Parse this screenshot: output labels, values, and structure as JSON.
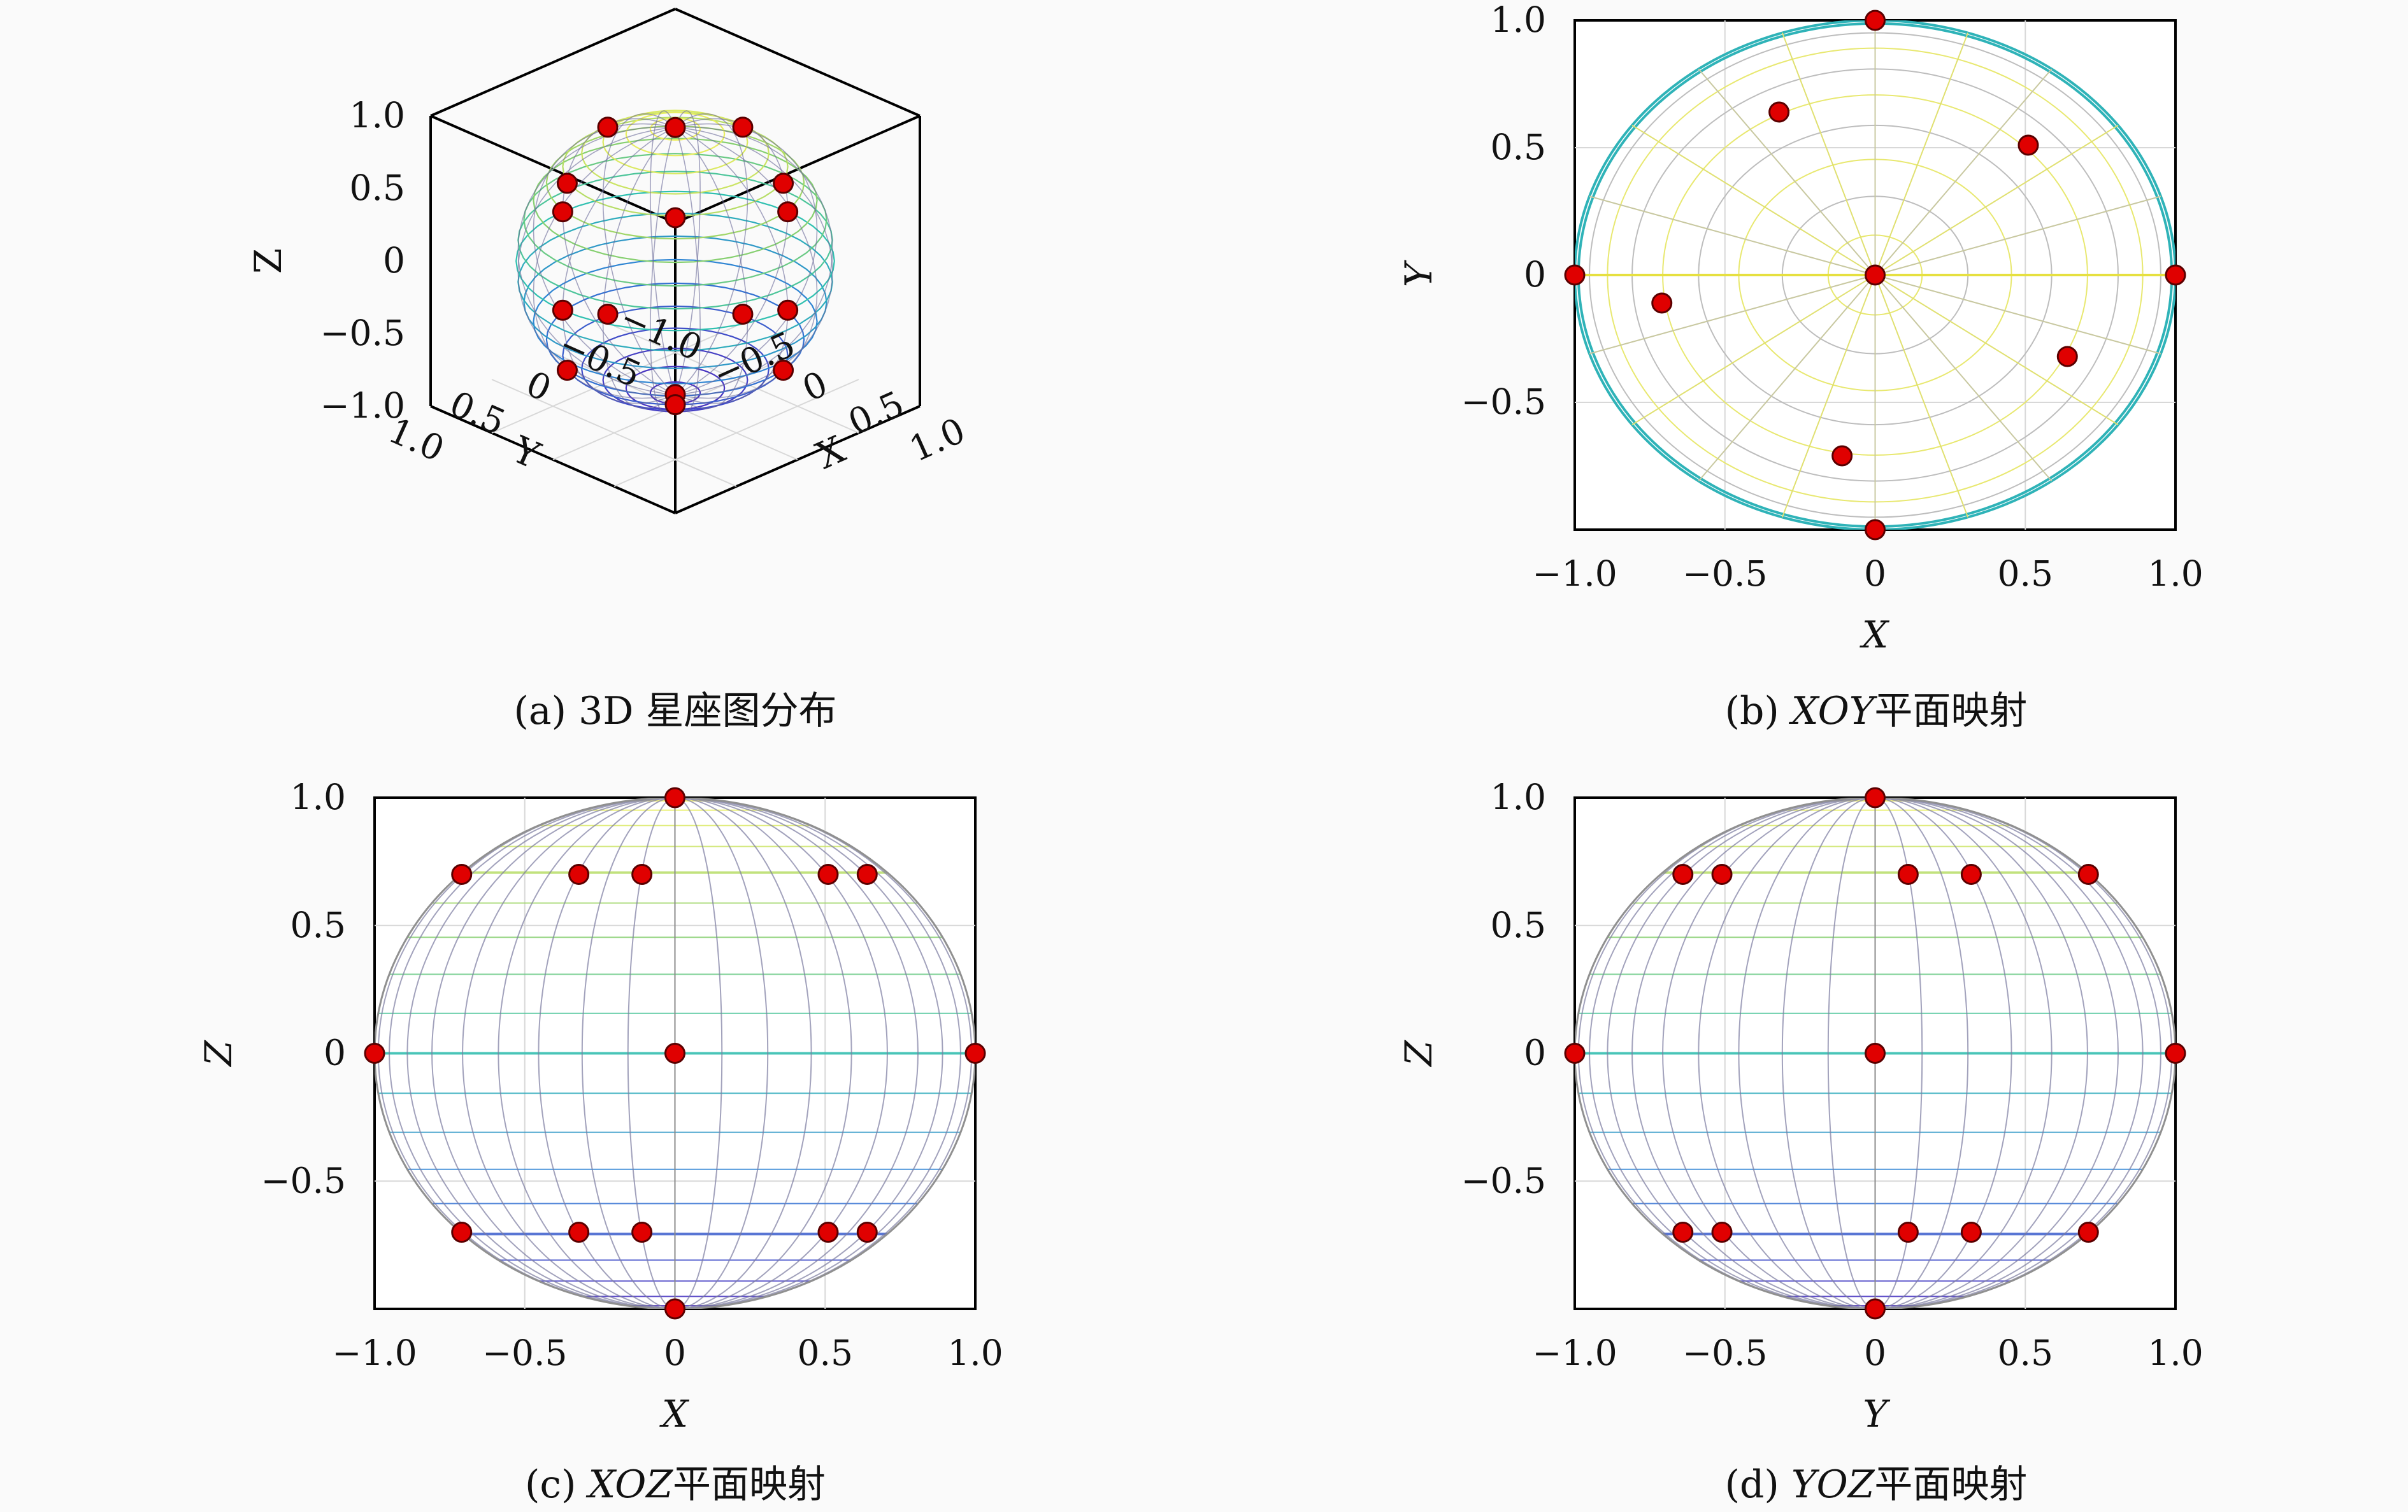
{
  "colors": {
    "point": "#e00000",
    "colormap": [
      "#4b2dbf",
      "#2f7fd6",
      "#2fc0b0",
      "#8fd06a",
      "#f0f060"
    ]
  },
  "chart_data": [
    {
      "id": "a",
      "type": "scatter3d",
      "caption": "(a) 3D 星座图分布",
      "xlabel": "X",
      "ylabel": "Y",
      "zlabel": "Z",
      "xlim": [
        -1,
        1
      ],
      "ylim": [
        -1,
        1
      ],
      "zlim": [
        -1,
        1
      ],
      "x_ticks": [
        "−0.5",
        "0",
        "0.5",
        "1.0"
      ],
      "y_ticks": [
        "1.0",
        "0.5",
        "0",
        "−0.5",
        "−1.0"
      ],
      "z_ticks": [
        "1.0",
        "0.5",
        "0",
        "−0.5",
        "−1.0"
      ],
      "surface": "unit-sphere-wireframe"
    },
    {
      "id": "b",
      "type": "scatter",
      "caption_prefix": "(b) ",
      "caption_italic": "XOY",
      "caption_suffix": "平面映射",
      "xlabel": "X",
      "ylabel": "Y",
      "xlim": [
        -1,
        1
      ],
      "ylim": [
        -1,
        1
      ],
      "x_ticks": [
        "−1.0",
        "−0.5",
        "0",
        "0.5",
        "1.0"
      ],
      "y_ticks": [
        "1.0",
        "0.5",
        "0",
        "−0.5"
      ],
      "surface": "sphere-top-view",
      "points": [
        [
          0,
          1
        ],
        [
          -0.32,
          0.64
        ],
        [
          0.51,
          0.51
        ],
        [
          -1,
          0
        ],
        [
          0,
          0
        ],
        [
          1,
          0
        ],
        [
          -0.71,
          -0.11
        ],
        [
          0.64,
          -0.32
        ],
        [
          -0.11,
          -0.71
        ],
        [
          0,
          -1
        ]
      ]
    },
    {
      "id": "c",
      "type": "scatter",
      "caption_prefix": "(c) ",
      "caption_italic": "XOZ",
      "caption_suffix": "平面映射",
      "xlabel": "X",
      "ylabel": "Z",
      "xlim": [
        -1,
        1
      ],
      "ylim": [
        -1,
        1
      ],
      "x_ticks": [
        "−1.0",
        "−0.5",
        "0",
        "0.5",
        "1.0"
      ],
      "y_ticks": [
        "1.0",
        "0.5",
        "0",
        "−0.5"
      ],
      "surface": "sphere-side-view",
      "points": [
        [
          0,
          1
        ],
        [
          -0.71,
          0.7
        ],
        [
          -0.32,
          0.7
        ],
        [
          -0.11,
          0.7
        ],
        [
          0.51,
          0.7
        ],
        [
          0.64,
          0.7
        ],
        [
          -1,
          0
        ],
        [
          0,
          0
        ],
        [
          1,
          0
        ],
        [
          -0.71,
          -0.7
        ],
        [
          -0.32,
          -0.7
        ],
        [
          -0.11,
          -0.7
        ],
        [
          0.51,
          -0.7
        ],
        [
          0.64,
          -0.7
        ],
        [
          0,
          -1
        ]
      ]
    },
    {
      "id": "d",
      "type": "scatter",
      "caption_prefix": "(d) ",
      "caption_italic": "YOZ",
      "caption_suffix": "平面映射",
      "xlabel": "Y",
      "ylabel": "Z",
      "xlim": [
        -1,
        1
      ],
      "ylim": [
        -1,
        1
      ],
      "x_ticks": [
        "−1.0",
        "−0.5",
        "0",
        "0.5",
        "1.0"
      ],
      "y_ticks": [
        "1.0",
        "0.5",
        "0",
        "−0.5"
      ],
      "surface": "sphere-side-view",
      "points": [
        [
          0,
          1
        ],
        [
          -0.64,
          0.7
        ],
        [
          -0.51,
          0.7
        ],
        [
          0.11,
          0.7
        ],
        [
          0.32,
          0.7
        ],
        [
          0.71,
          0.7
        ],
        [
          -1,
          0
        ],
        [
          0,
          0
        ],
        [
          1,
          0
        ],
        [
          -0.64,
          -0.7
        ],
        [
          -0.51,
          -0.7
        ],
        [
          0.11,
          -0.7
        ],
        [
          0.32,
          -0.7
        ],
        [
          0.71,
          -0.7
        ],
        [
          0,
          -1
        ]
      ]
    }
  ]
}
